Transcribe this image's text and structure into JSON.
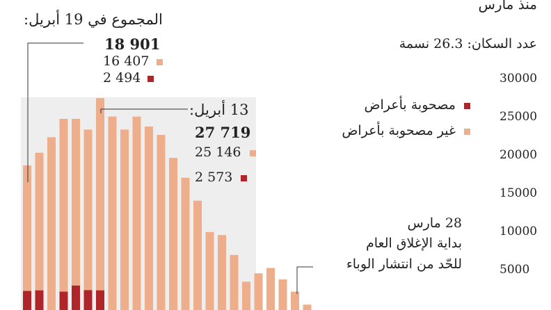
{
  "header": {
    "subtitle_top": "منذ مارس",
    "population": "عدد السكان: 26.3 نسمة"
  },
  "legend": {
    "symptomatic": "مصحوبة بأعراض",
    "asymptomatic": "غير مصحوبة بأعراض"
  },
  "annotations": {
    "total_date": "المجموع في 19 أبريل:",
    "total_value": "18 901",
    "total_asym": "16 407",
    "total_sym": "2 494",
    "peak_date": "13 أبريل:",
    "peak_value": "27 719",
    "peak_asym": "25 146",
    "peak_sym": "2 573",
    "lockdown_line1": "28 مارس",
    "lockdown_line2": "بداية الإغلاق العام",
    "lockdown_line3": "للحّد من انتشار الوباء"
  },
  "colors": {
    "asymptomatic": "#ee ae8c",
    "symptomatic": "#b0252a",
    "shade": "#eeeeee"
  },
  "chart_data": {
    "type": "bar",
    "stacked": true,
    "categories": [
      "",
      "",
      "",
      "",
      "",
      "",
      "",
      "",
      "",
      "",
      "",
      "",
      "",
      "",
      "",
      "",
      "",
      "",
      "",
      "",
      "",
      "",
      "",
      "",
      "",
      ""
    ],
    "series": [
      {
        "name": "مصحوبة بأعراض",
        "values": [
          2494,
          2573,
          0,
          2400,
          3200,
          2600,
          2573,
          0,
          0,
          0,
          0,
          0,
          0,
          0,
          0,
          0,
          0,
          0,
          0,
          0,
          0,
          0,
          0,
          0,
          0,
          0
        ]
      },
      {
        "name": "غير مصحوبة بأعراض",
        "values": [
          16407,
          18000,
          22600,
          22600,
          21800,
          21000,
          25146,
          25300,
          23600,
          25300,
          24000,
          22900,
          19900,
          17300,
          14300,
          10200,
          9800,
          7200,
          3700,
          4800,
          5500,
          4000,
          2400,
          700,
          0,
          0
        ]
      }
    ],
    "ylim": [
      0,
      30000
    ],
    "yticks": [
      5000,
      10000,
      15000,
      20000,
      25000,
      30000
    ],
    "grid": false
  }
}
